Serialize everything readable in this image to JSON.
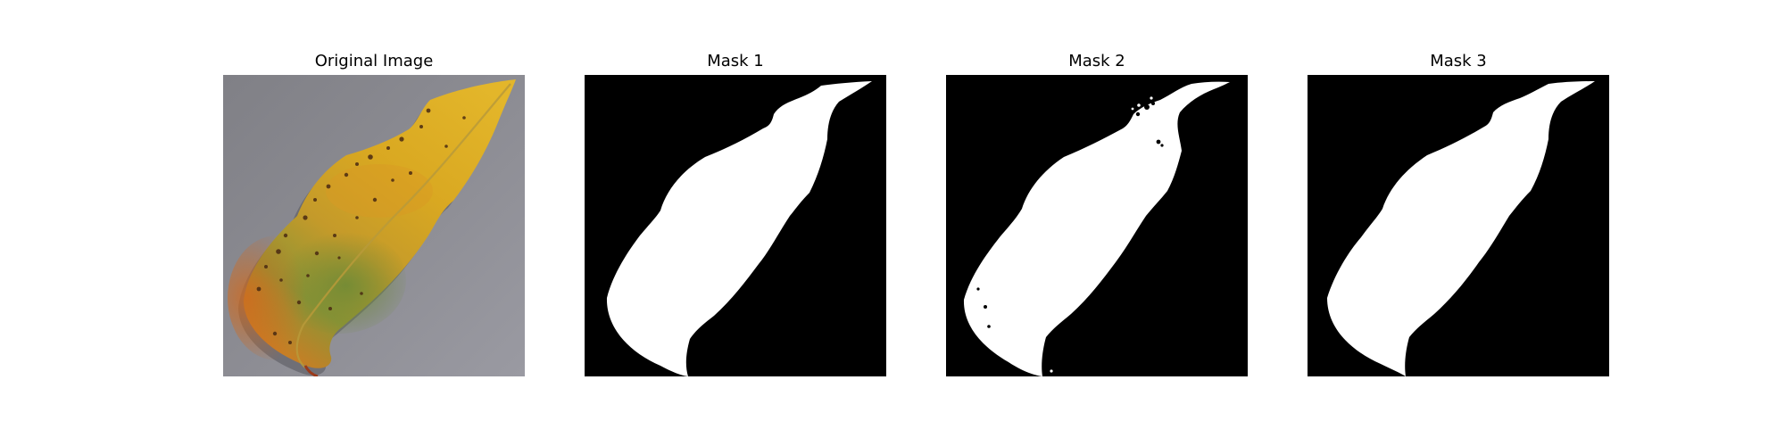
{
  "figure": {
    "panels": [
      {
        "title": "Original Image",
        "kind": "photo",
        "subject": "autumn leaf on gray surface"
      },
      {
        "title": "Mask 1",
        "kind": "binary-mask"
      },
      {
        "title": "Mask 2",
        "kind": "binary-mask"
      },
      {
        "title": "Mask 3",
        "kind": "binary-mask"
      }
    ],
    "colors": {
      "mask_background": "#000000",
      "mask_foreground": "#ffffff",
      "photo_background": "#8a8a90",
      "leaf_yellow": "#d9a821",
      "leaf_orange": "#d27a22",
      "leaf_green": "#7f9334",
      "leaf_spots": "#4a2a12"
    }
  }
}
